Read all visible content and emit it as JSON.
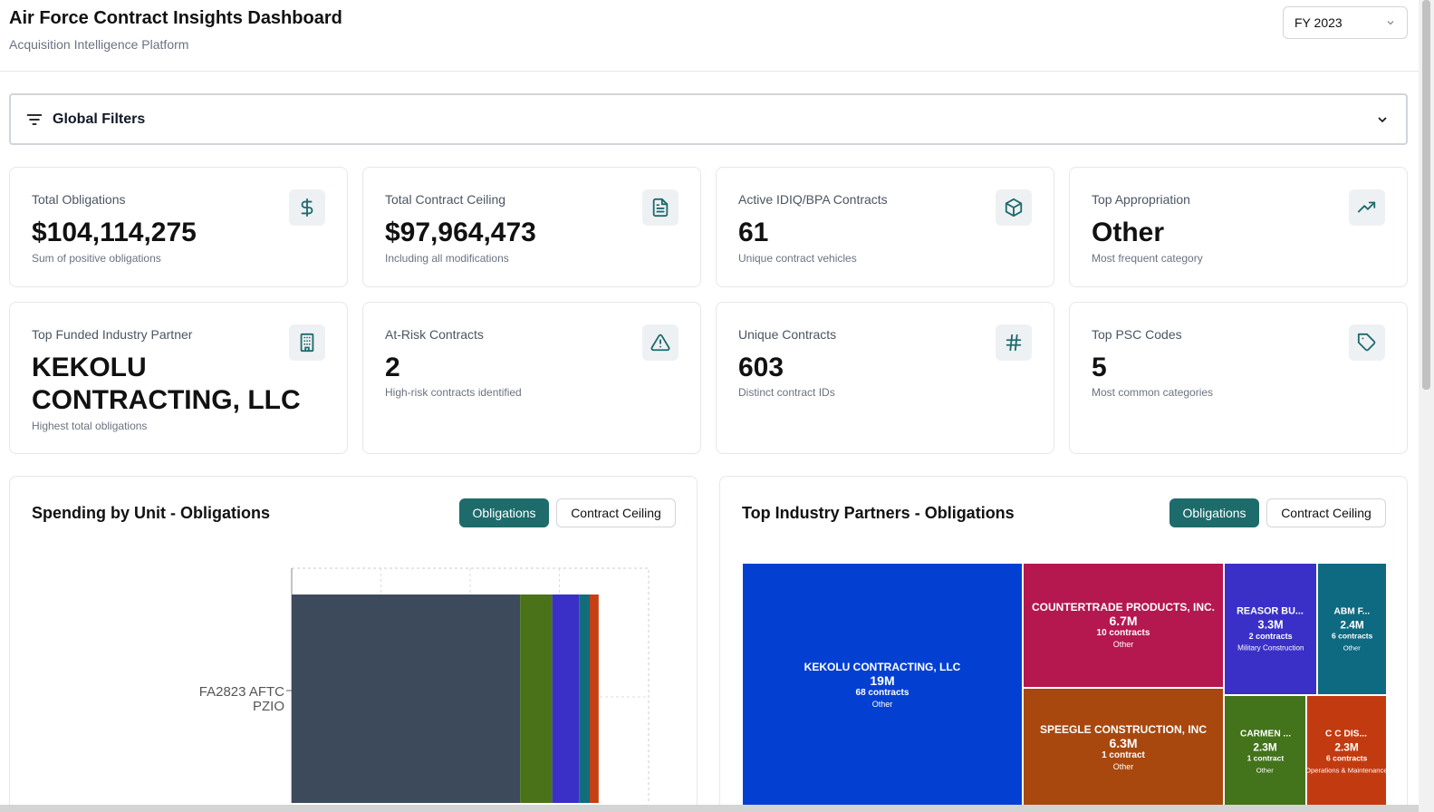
{
  "header": {
    "title": "Air Force Contract Insights Dashboard",
    "subtitle": "Acquisition Intelligence Platform",
    "fiscal_year": "FY 2023"
  },
  "filters": {
    "label": "Global Filters"
  },
  "kpis": [
    {
      "title": "Total Obligations",
      "value": "$104,114,275",
      "sub": "Sum of positive obligations",
      "icon": "dollar-icon"
    },
    {
      "title": "Total Contract Ceiling",
      "value": "$97,964,473",
      "sub": "Including all modifications",
      "icon": "document-icon"
    },
    {
      "title": "Active IDIQ/BPA Contracts",
      "value": "61",
      "sub": "Unique contract vehicles",
      "icon": "package-icon"
    },
    {
      "title": "Top Appropriation",
      "value": "Other",
      "sub": "Most frequent category",
      "icon": "trending-up-icon"
    },
    {
      "title": "Top Funded Industry Partner",
      "value_line1": "KEKOLU",
      "value_line2": "CONTRACTING, LLC",
      "sub": "Highest total obligations",
      "icon": "building-icon"
    },
    {
      "title": "At-Risk Contracts",
      "value": "2",
      "sub": "High-risk contracts identified",
      "icon": "warning-icon"
    },
    {
      "title": "Unique Contracts",
      "value": "603",
      "sub": "Distinct contract IDs",
      "icon": "hash-icon"
    },
    {
      "title": "Top PSC Codes",
      "value": "5",
      "sub": "Most common categories",
      "icon": "tag-icon"
    }
  ],
  "spending_panel": {
    "title": "Spending by Unit - Obligations",
    "toggle_active": "Obligations",
    "toggle_inactive": "Contract Ceiling",
    "chart_data": {
      "type": "bar",
      "orientation": "horizontal-stacked",
      "categories": [
        "FA2823 AFTC PZIO"
      ],
      "category_line1": "FA2823 AFTC",
      "category_line2": "PZIO",
      "series": [
        {
          "values": [
            64
          ],
          "color": "#3d4a5c"
        },
        {
          "values": [
            9
          ],
          "color": "#4a7319"
        },
        {
          "values": [
            7.5
          ],
          "color": "#3a30c7"
        },
        {
          "values": [
            3
          ],
          "color": "#126d7a"
        },
        {
          "values": [
            2.5
          ],
          "color": "#c63f15"
        }
      ],
      "xlim": [
        0,
        100
      ],
      "grid": true
    }
  },
  "partners_panel": {
    "title": "Top Industry Partners - Obligations",
    "toggle_active": "Obligations",
    "toggle_inactive": "Contract Ceiling",
    "chart_data": {
      "type": "treemap",
      "items": [
        {
          "name": "KEKOLU CONTRACTING, LLC",
          "value": "19M",
          "contracts": "68 contracts",
          "category": "Other",
          "color": "#0340d2"
        },
        {
          "name": "COUNTERTRADE PRODUCTS, INC.",
          "value": "6.7M",
          "contracts": "10 contracts",
          "category": "Other",
          "color": "#b5174f"
        },
        {
          "name": "SPEEGLE CONSTRUCTION, INC",
          "value": "6.3M",
          "contracts": "1 contract",
          "category": "Other",
          "color": "#a8480f"
        },
        {
          "name": "REASOR BU...",
          "value": "3.3M",
          "contracts": "2 contracts",
          "category": "Military Construction",
          "color": "#3a30c7"
        },
        {
          "name": "ABM F...",
          "value": "2.4M",
          "contracts": "6 contracts",
          "category": "Other",
          "color": "#0e6a80"
        },
        {
          "name": "CARMEN ...",
          "value": "2.3M",
          "contracts": "1 contract",
          "category": "Other",
          "color": "#43731a"
        },
        {
          "name": "C C DIS...",
          "value": "2.3M",
          "contracts": "6 contracts",
          "category": "Operations & Maintenance",
          "color": "#c23b10"
        }
      ]
    }
  }
}
